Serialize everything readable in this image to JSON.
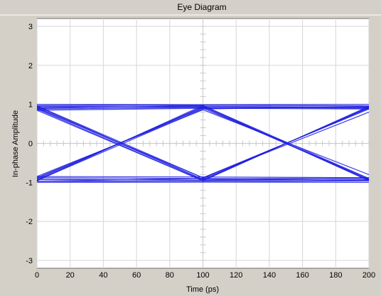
{
  "chart_data": {
    "type": "line",
    "title": "Eye Diagram",
    "xlabel": "Time (ps)",
    "ylabel": "In-phase Amplitude",
    "xlim": [
      0,
      200
    ],
    "ylim": [
      -3.2,
      3.2
    ],
    "x_ticks": [
      0,
      20,
      40,
      60,
      80,
      100,
      120,
      140,
      160,
      180,
      200
    ],
    "y_ticks": [
      -3,
      -2,
      -1,
      0,
      1,
      2,
      3
    ],
    "grid": true,
    "legend": "none",
    "series_color": "#1f1fe0",
    "series": [
      {
        "x": [
          0,
          100,
          200
        ],
        "y": [
          0.92,
          0.95,
          0.93
        ]
      },
      {
        "x": [
          0,
          100,
          200
        ],
        "y": [
          0.97,
          0.98,
          0.96
        ]
      },
      {
        "x": [
          0,
          100,
          200
        ],
        "y": [
          0.88,
          0.92,
          0.9
        ]
      },
      {
        "x": [
          0,
          100,
          200
        ],
        "y": [
          1.0,
          0.99,
          1.0
        ]
      },
      {
        "x": [
          0,
          100,
          200
        ],
        "y": [
          0.85,
          0.9,
          0.88
        ]
      },
      {
        "x": [
          0,
          100,
          200
        ],
        "y": [
          -0.92,
          -0.95,
          -0.93
        ]
      },
      {
        "x": [
          0,
          100,
          200
        ],
        "y": [
          -0.97,
          -0.98,
          -0.96
        ]
      },
      {
        "x": [
          0,
          100,
          200
        ],
        "y": [
          -0.88,
          -0.9,
          -0.9
        ]
      },
      {
        "x": [
          0,
          100,
          200
        ],
        "y": [
          -1.0,
          -0.99,
          -1.0
        ]
      },
      {
        "x": [
          0,
          100,
          200
        ],
        "y": [
          -0.85,
          -0.86,
          -0.88
        ]
      },
      {
        "x": [
          0,
          100,
          200
        ],
        "y": [
          0.95,
          -0.93,
          0.92
        ]
      },
      {
        "x": [
          0,
          100,
          200
        ],
        "y": [
          0.9,
          -0.88,
          0.88
        ]
      },
      {
        "x": [
          0,
          100,
          200
        ],
        "y": [
          0.85,
          -0.96,
          0.95
        ]
      },
      {
        "x": [
          0,
          100,
          200
        ],
        "y": [
          -0.93,
          0.94,
          -0.93
        ]
      },
      {
        "x": [
          0,
          100,
          200
        ],
        "y": [
          -0.88,
          0.9,
          -0.9
        ]
      },
      {
        "x": [
          0,
          100,
          200
        ],
        "y": [
          -0.96,
          0.97,
          -0.96
        ]
      },
      {
        "x": [
          0,
          100,
          200
        ],
        "y": [
          0.92,
          -0.92,
          -0.95
        ]
      },
      {
        "x": [
          0,
          100,
          200
        ],
        "y": [
          0.88,
          -0.95,
          -0.88
        ]
      },
      {
        "x": [
          0,
          100,
          200
        ],
        "y": [
          -0.9,
          0.92,
          0.92
        ]
      },
      {
        "x": [
          0,
          100,
          200
        ],
        "y": [
          -0.95,
          0.88,
          0.95
        ]
      },
      {
        "x": [
          0,
          100,
          200
        ],
        "y": [
          0.95,
          0.93,
          -0.94
        ]
      },
      {
        "x": [
          0,
          100,
          200
        ],
        "y": [
          0.9,
          0.97,
          -0.9
        ]
      },
      {
        "x": [
          0,
          100,
          200
        ],
        "y": [
          -0.92,
          -0.94,
          0.93
        ]
      },
      {
        "x": [
          0,
          100,
          200
        ],
        "y": [
          -0.97,
          -0.9,
          0.9
        ]
      },
      {
        "x": [
          0,
          100,
          200
        ],
        "y": [
          0.96,
          -0.88,
          0.8
        ]
      },
      {
        "x": [
          0,
          100,
          200
        ],
        "y": [
          -0.85,
          0.86,
          -0.8
        ]
      }
    ]
  }
}
